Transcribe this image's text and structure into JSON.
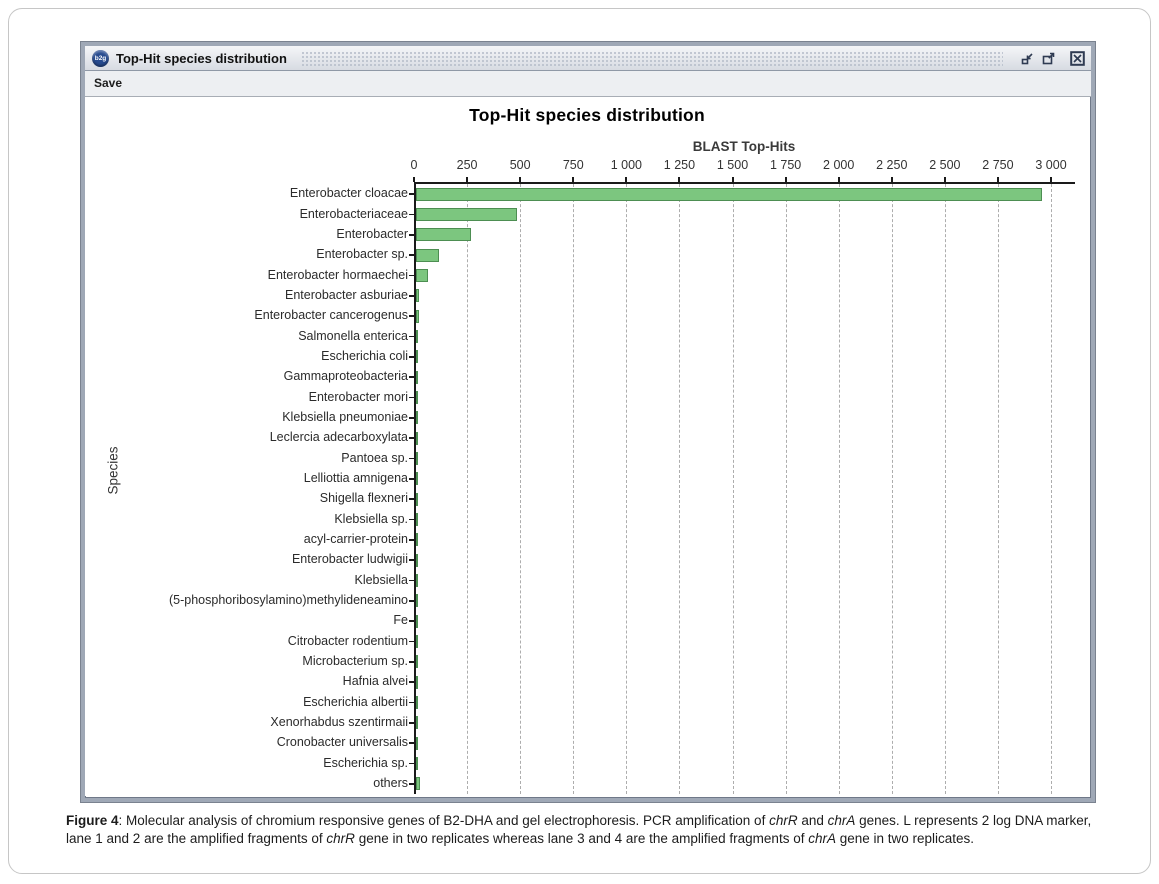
{
  "window": {
    "icon_label": "b2g",
    "title": "Top-Hit species distribution",
    "menu": {
      "save_label": "Save"
    }
  },
  "chart_data": {
    "type": "bar",
    "orientation": "horizontal",
    "title": "Top-Hit species distribution",
    "xlabel": "BLAST Top-Hits",
    "ylabel": "Species",
    "xlim": [
      0,
      3000
    ],
    "x_ticks": [
      0,
      250,
      500,
      750,
      1000,
      1250,
      1500,
      1750,
      2000,
      2250,
      2500,
      2750,
      3000
    ],
    "x_tick_labels": [
      "0",
      "250",
      "500",
      "750",
      "1 000",
      "1 250",
      "1 500",
      "1 750",
      "2 000",
      "2 250",
      "2 500",
      "2 750",
      "3 000"
    ],
    "grid": "vertical-dashed",
    "legend": "none",
    "bar_color": "#7cc67f",
    "bar_border_color": "#4d8e52",
    "categories": [
      "Enterobacter cloacae",
      "Enterobacteriaceae",
      "Enterobacter",
      "Enterobacter sp.",
      "Enterobacter hormaechei",
      "Enterobacter asburiae",
      "Enterobacter cancerogenus",
      "Salmonella enterica",
      "Escherichia coli",
      "Gammaproteobacteria",
      "Enterobacter mori",
      "Klebsiella pneumoniae",
      "Leclercia adecarboxylata",
      "Pantoea sp.",
      "Lelliottia amnigena",
      "Shigella flexneri",
      "Klebsiella sp.",
      "acyl-carrier-protein",
      "Enterobacter ludwigii",
      "Klebsiella",
      "(5-phosphoribosylamino)methylideneamino",
      "Fe",
      "Citrobacter rodentium",
      "Microbacterium sp.",
      "Hafnia alvei",
      "Escherichia albertii",
      "Xenorhabdus szentirmaii",
      "Cronobacter universalis",
      "Escherichia sp.",
      "others"
    ],
    "values": [
      2950,
      475,
      260,
      110,
      55,
      15,
      13,
      10,
      9,
      8,
      7,
      6,
      6,
      5,
      5,
      5,
      4,
      4,
      4,
      3,
      3,
      3,
      3,
      2,
      2,
      2,
      2,
      2,
      2,
      20
    ]
  },
  "caption": {
    "segments": [
      {
        "text": "Figure 4",
        "bold": true
      },
      {
        "text": ": Molecular analysis of chromium responsive genes of B2-DHA and gel electrophoresis. PCR amplification of "
      },
      {
        "text": "chrR",
        "italic": true
      },
      {
        "text": " and "
      },
      {
        "text": "chrA",
        "italic": true
      },
      {
        "text": " genes. L represents 2 log DNA marker, lane 1 and 2 are the amplified fragments of "
      },
      {
        "text": "chrR",
        "italic": true
      },
      {
        "text": " gene in two replicates whereas lane 3 and 4 are the amplified fragments of "
      },
      {
        "text": "chrA",
        "italic": true
      },
      {
        "text": " gene in two replicates."
      }
    ]
  }
}
